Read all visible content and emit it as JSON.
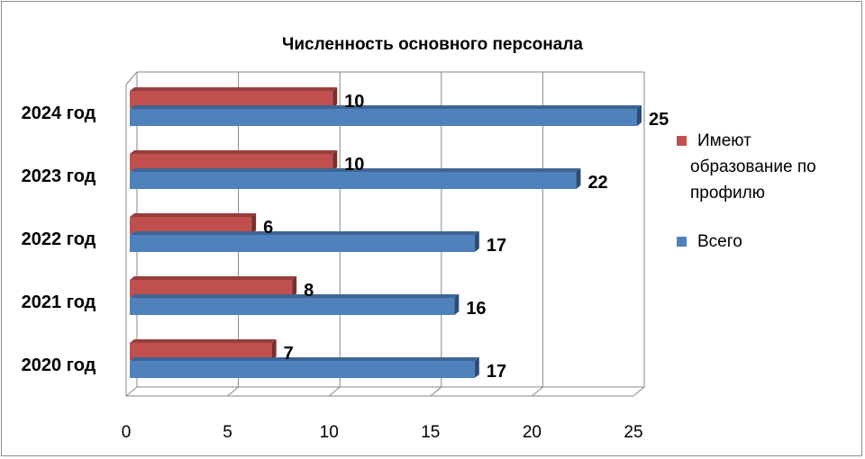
{
  "chart_data": {
    "type": "bar",
    "orientation": "horizontal",
    "title": "Численность основного персонала",
    "categories": [
      "2020 год",
      "2021 год",
      "2022 год",
      "2023 год",
      "2024 год"
    ],
    "series": [
      {
        "name": "Всего",
        "values": [
          17,
          16,
          17,
          22,
          25
        ],
        "color": "#4f81bd"
      },
      {
        "name": "Имеют образование по профилю",
        "values": [
          7,
          8,
          6,
          10,
          10
        ],
        "color": "#c0504d"
      }
    ],
    "legend_lines": [
      [
        "Имеют",
        "образование по",
        "профилю"
      ],
      [
        "Всего"
      ]
    ],
    "xlim": [
      0,
      25
    ],
    "xticks": [
      "0",
      "5",
      "10",
      "15",
      "20",
      "25"
    ],
    "grid": true,
    "legend": "right"
  }
}
